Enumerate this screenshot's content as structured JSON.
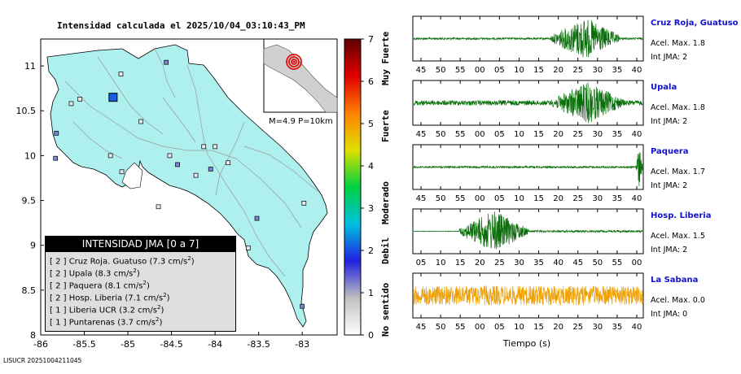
{
  "title": "Intensidad calculada el 2025/10/04_03:10:43_PM",
  "footer": "LISUCR 20251004211045",
  "map": {
    "x_ticks": [
      "-86",
      "-85.5",
      "-85",
      "-84.5",
      "-84",
      "-83.5",
      "-83"
    ],
    "y_ticks": [
      "11",
      "10.5",
      "10",
      "9.5",
      "9",
      "8.5",
      "8"
    ],
    "inset_label": "M=4.9 P=10km",
    "land_color": "#aef0ee",
    "epicenter_color": "#e01010"
  },
  "legend": {
    "header": "INTENSIDAD JMA [0 a 7]",
    "rows": [
      {
        "level": "[ 2 ]",
        "name": "Cruz Roja. Guatuso",
        "value": "(7.3 cm/s",
        "sup": "2",
        "close": ")"
      },
      {
        "level": "[ 2 ]",
        "name": "Upala",
        "value": "(8.3 cm/s",
        "sup": "2",
        "close": ")"
      },
      {
        "level": "[ 2 ]",
        "name": "Paquera",
        "value": "(8.1 cm/s",
        "sup": "2",
        "close": ")"
      },
      {
        "level": "[ 2 ]",
        "name": "Hosp. Liberia",
        "value": "(7.1 cm/s",
        "sup": "2",
        "close": ")"
      },
      {
        "level": "[ 1 ]",
        "name": "Liberia UCR",
        "value": "(3.2 cm/s",
        "sup": "2",
        "close": ")"
      },
      {
        "level": "[ 1 ]",
        "name": "Puntarenas",
        "value": "(3.7 cm/s",
        "sup": "2",
        "close": ")"
      }
    ]
  },
  "colorbar": {
    "ticks": [
      "7",
      "6",
      "5",
      "4",
      "3",
      "2",
      "1",
      "0"
    ],
    "labels": {
      "muy_fuerte": "Muy Fuerte",
      "fuerte": "Fuerte",
      "moderado": "Moderado",
      "debil": "Debil",
      "no_sentido": "No sentido"
    }
  },
  "waveforms": {
    "xlabel": "Tiempo (s)",
    "stations": [
      {
        "name": "Cruz Roja, Guatuso",
        "accel": "Acel. Max. 1.8",
        "jma": "Int JMA: 2",
        "color": "#0a6e0a",
        "ticks": [
          "45",
          "50",
          "55",
          "00",
          "05",
          "10",
          "15",
          "20",
          "25",
          "30",
          "35",
          "40"
        ]
      },
      {
        "name": "Upala",
        "accel": "Acel. Max. 1.8",
        "jma": "Int JMA: 2",
        "color": "#0a6e0a",
        "ticks": [
          "45",
          "50",
          "55",
          "00",
          "05",
          "10",
          "15",
          "20",
          "25",
          "30",
          "35",
          "40"
        ]
      },
      {
        "name": "Paquera",
        "accel": "Acel. Max. 1.7",
        "jma": "Int JMA: 2",
        "color": "#0a6e0a",
        "ticks": [
          "45",
          "50",
          "55",
          "00",
          "05",
          "10",
          "15",
          "20",
          "25",
          "30",
          "35",
          "40"
        ]
      },
      {
        "name": "Hosp. Liberia",
        "accel": "Acel. Max. 1.5",
        "jma": "Int JMA: 2",
        "color": "#0a6e0a",
        "ticks": [
          "05",
          "10",
          "15",
          "20",
          "25",
          "30",
          "35",
          "40",
          "45",
          "50",
          "55",
          "00"
        ]
      },
      {
        "name": "La Sabana",
        "accel": "Acel. Max. 0.0",
        "jma": "Int JMA: 0",
        "color": "#f0a000",
        "ticks": [
          "45",
          "50",
          "55",
          "00",
          "05",
          "10",
          "15",
          "20",
          "25",
          "30",
          "35",
          "40"
        ]
      }
    ]
  },
  "chart_data": [
    {
      "type": "scatter",
      "title": "Intensidad calculada el 2025/10/04_03:10:43_PM",
      "xlim": [
        -86,
        -82.6
      ],
      "ylim": [
        8,
        11.3
      ],
      "station_points": [
        {
          "lon": -85.17,
          "lat": 10.65,
          "jma": 2
        },
        {
          "lon": -85.55,
          "lat": 10.63
        },
        {
          "lon": -85.08,
          "lat": 10.91
        },
        {
          "lon": -84.56,
          "lat": 11.04
        },
        {
          "lon": -85.65,
          "lat": 10.58
        },
        {
          "lon": -84.85,
          "lat": 10.38
        },
        {
          "lon": -85.82,
          "lat": 10.25
        },
        {
          "lon": -84.13,
          "lat": 10.1
        },
        {
          "lon": -85.2,
          "lat": 10.0
        },
        {
          "lon": -85.83,
          "lat": 9.97
        },
        {
          "lon": -85.07,
          "lat": 9.82
        },
        {
          "lon": -84.52,
          "lat": 10.0
        },
        {
          "lon": -84.43,
          "lat": 9.9
        },
        {
          "lon": -84.22,
          "lat": 9.78
        },
        {
          "lon": -84.65,
          "lat": 9.43
        },
        {
          "lon": -83.52,
          "lat": 9.3
        },
        {
          "lon": -82.98,
          "lat": 9.47
        },
        {
          "lon": -83.62,
          "lat": 8.97
        },
        {
          "lon": -83.0,
          "lat": 8.32
        },
        {
          "lon": -84.0,
          "lat": 10.1
        },
        {
          "lon": -83.85,
          "lat": 9.92
        },
        {
          "lon": -84.05,
          "lat": 9.85
        }
      ],
      "epicenter_inset": true
    },
    {
      "type": "heatmap",
      "title": "",
      "scale": "Intensidad JMA",
      "ylim": [
        0,
        7
      ],
      "colors": [
        "#ffffff",
        "#c0c0c0",
        "#2020e0",
        "#00c0e0",
        "#00d040",
        "#e0e000",
        "#ff8000",
        "#e00000",
        "#600000"
      ]
    },
    {
      "type": "line",
      "xlabel": "Tiempo (s)",
      "series": [
        {
          "name": "Cruz Roja, Guatuso",
          "peak_window": [
            0.6,
            0.9
          ]
        },
        {
          "name": "Upala",
          "peak_window": [
            0.6,
            0.92
          ]
        },
        {
          "name": "Paquera",
          "peak_window": [
            0.97,
            1.0
          ]
        },
        {
          "name": "Hosp. Liberia",
          "peak_window": [
            0.2,
            0.5
          ]
        },
        {
          "name": "La Sabana",
          "peak_window": [
            0.0,
            1.0
          ]
        }
      ]
    }
  ]
}
